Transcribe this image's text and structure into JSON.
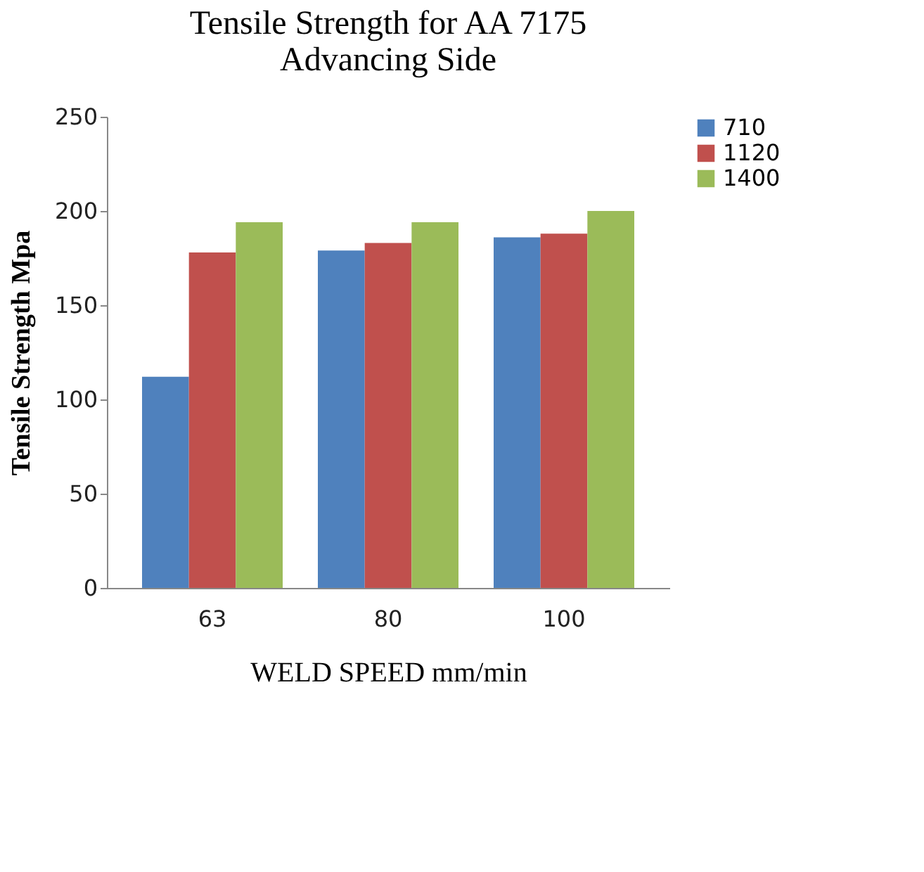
{
  "chart_data": {
    "type": "bar",
    "title": [
      "Tensile Strength for AA 7175",
      "Advancing Side"
    ],
    "xlabel": "WELD SPEED mm/min",
    "ylabel": "Tensile Strength Mpa",
    "categories": [
      "63",
      "80",
      "100"
    ],
    "series": [
      {
        "name": "710",
        "color": "#4f81bd",
        "values": [
          112,
          179,
          186
        ]
      },
      {
        "name": "1120",
        "color": "#c0504d",
        "values": [
          178,
          183,
          188
        ]
      },
      {
        "name": "1400",
        "color": "#9bbb59",
        "values": [
          194,
          194,
          200
        ]
      }
    ],
    "ylim": [
      0,
      250
    ],
    "yticks": [
      0,
      50,
      100,
      150,
      200,
      250
    ],
    "grid": false,
    "legend": "right"
  }
}
